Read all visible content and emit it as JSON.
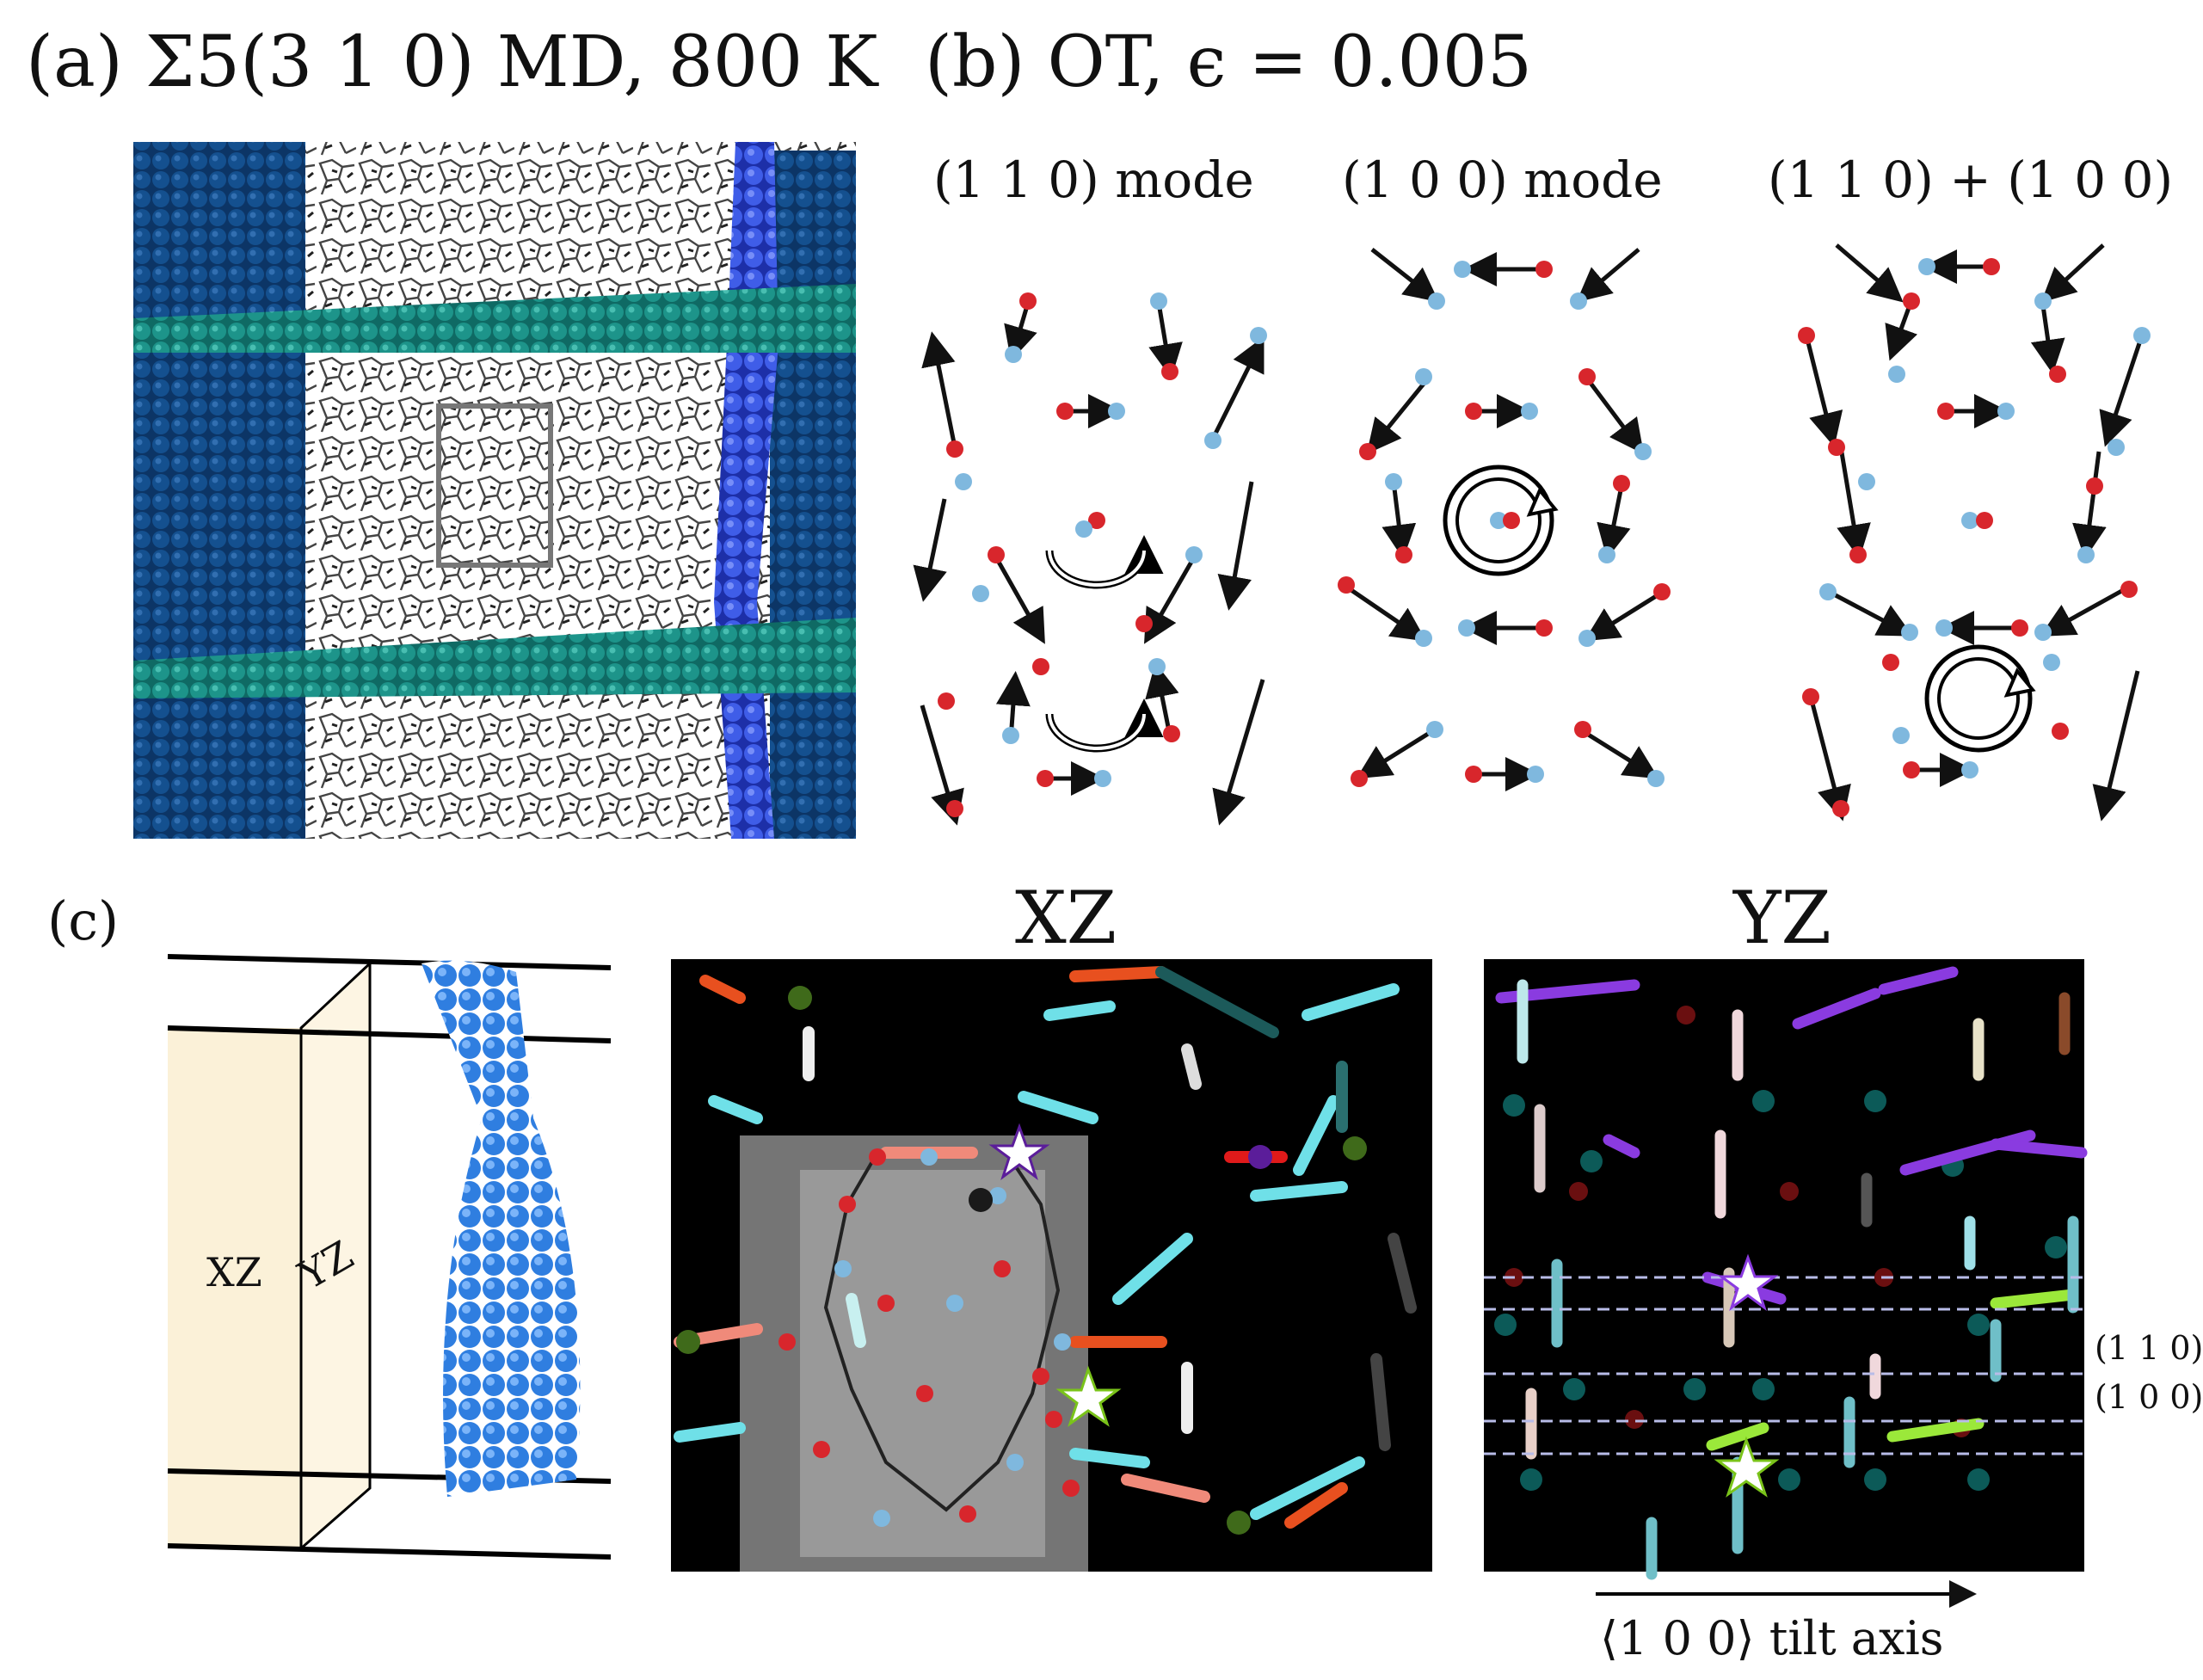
{
  "panel_a": {
    "title": "(a)  Σ5(3 1 0) MD, 800 K"
  },
  "panel_b": {
    "title": "(b)  OT, ϵ = 0.005",
    "modes": [
      "(1 1 0)  mode",
      "(1 0 0)  mode",
      "(1 1 0) + (1 0 0)"
    ]
  },
  "panel_c": {
    "label": "(c)",
    "box_labels": [
      "XZ",
      "YZ"
    ],
    "view_titles": [
      "XZ",
      "YZ"
    ],
    "plane_labels": [
      "(1 1 0)",
      "(1 0 0)"
    ],
    "axis_label": "⟨1 0 0⟩ tilt axis"
  },
  "colors": {
    "grain_dark": "#0d3d75",
    "stripe_teal": "#1a8a80",
    "gb_blue": "#3f5de8",
    "atom_red": "#d8262c",
    "atom_lightblue": "#7fb8de",
    "arrow_cyan": "#6fe0e8",
    "arrow_purple": "#8a3be0",
    "arrow_green": "#9be83a"
  }
}
